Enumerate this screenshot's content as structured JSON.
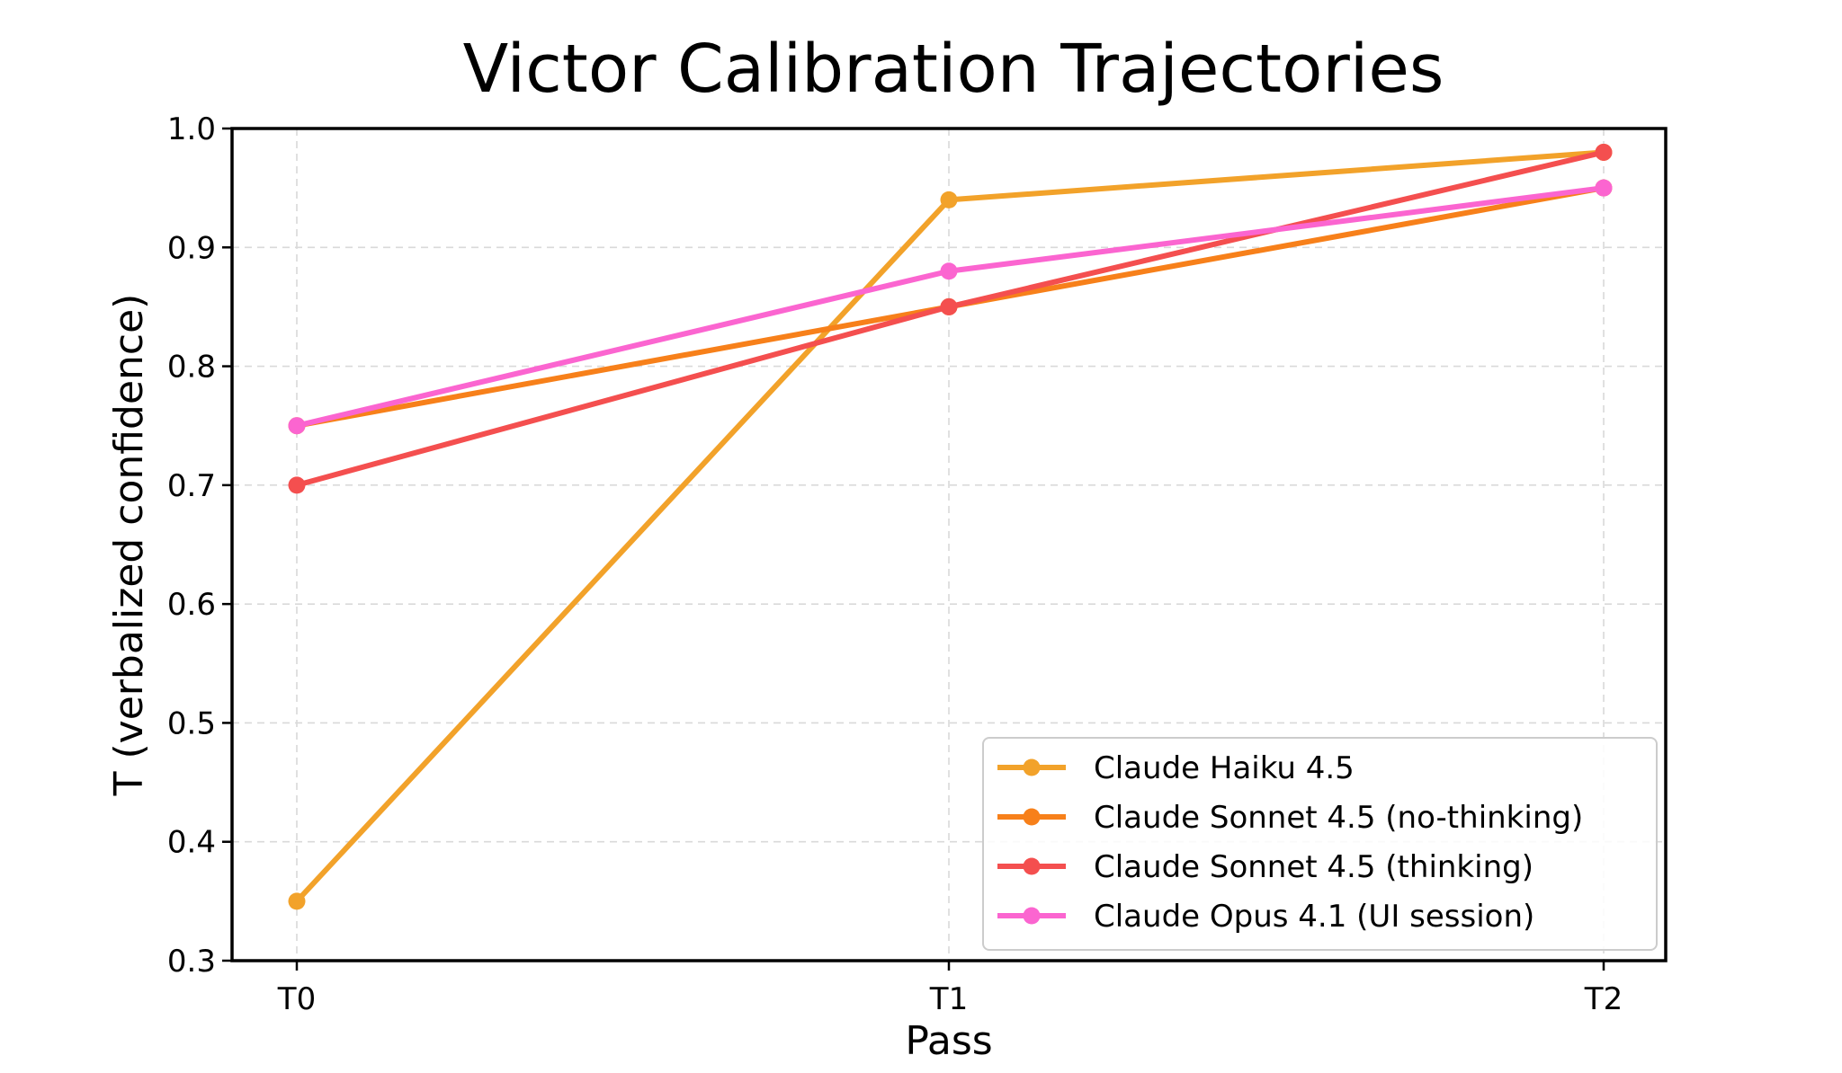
{
  "chart_data": {
    "type": "line",
    "title": "Victor Calibration Trajectories",
    "xlabel": "Pass",
    "ylabel": "T (verbalized confidence)",
    "categories": [
      "T0",
      "T1",
      "T2"
    ],
    "ylim": [
      0.3,
      1.0
    ],
    "yticks": [
      "0.3",
      "0.4",
      "0.5",
      "0.6",
      "0.7",
      "0.8",
      "0.9",
      "1.0"
    ],
    "grid": true,
    "legend_position": "lower-right",
    "series": [
      {
        "name": "Claude Haiku 4.5",
        "color": "#f2a22a",
        "values": [
          0.35,
          0.94,
          0.98
        ]
      },
      {
        "name": "Claude Sonnet 4.5 (no-thinking)",
        "color": "#f7801a",
        "values": [
          0.75,
          0.85,
          0.95
        ]
      },
      {
        "name": "Claude Sonnet 4.5 (thinking)",
        "color": "#f44f4f",
        "values": [
          0.7,
          0.85,
          0.98
        ]
      },
      {
        "name": "Claude Opus 4.1 (UI session)",
        "color": "#fb65d0",
        "values": [
          0.75,
          0.88,
          0.95
        ]
      }
    ]
  }
}
